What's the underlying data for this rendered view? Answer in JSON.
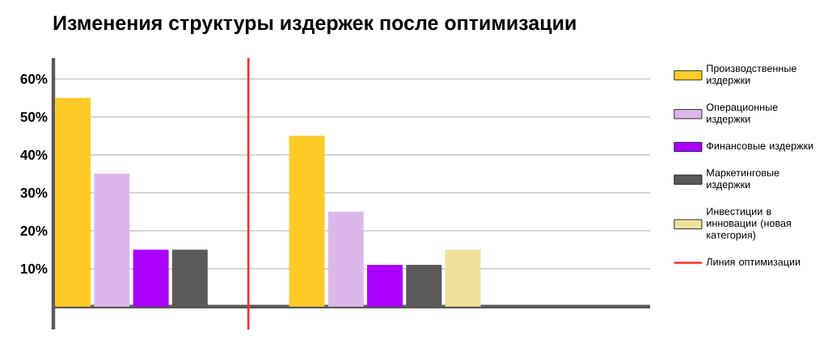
{
  "chart_data": {
    "type": "bar",
    "title": "Изменения структуры издержек после оптимизации",
    "categories": [
      null,
      null,
      null,
      null,
      null,
      null,
      null,
      null,
      null,
      null,
      null,
      null,
      null,
      null,
      null
    ],
    "series": [
      {
        "name": "Производственные издержки",
        "color": "#fecb26",
        "values": [
          55,
          null,
          null,
          null,
          null,
          null,
          45,
          null,
          null,
          null,
          null,
          null,
          null,
          null,
          null
        ]
      },
      {
        "name": "Операционные издержки",
        "color": "#dcb8ea",
        "values": [
          null,
          35,
          null,
          null,
          null,
          null,
          null,
          25,
          null,
          null,
          null,
          null,
          null,
          null,
          null
        ]
      },
      {
        "name": "Финансовые издержки",
        "color": "#aa00ff",
        "values": [
          null,
          null,
          15,
          null,
          null,
          null,
          null,
          null,
          11,
          null,
          null,
          null,
          null,
          null,
          null
        ]
      },
      {
        "name": "Маркетинговые издержки",
        "color": "#5a5a5a",
        "values": [
          null,
          null,
          null,
          15,
          null,
          null,
          null,
          null,
          null,
          11,
          null,
          null,
          null,
          null,
          null
        ]
      },
      {
        "name": "Инвестиции в инновации (новая категория)",
        "color": "#f0e19a",
        "values": [
          null,
          null,
          null,
          null,
          null,
          null,
          null,
          null,
          null,
          null,
          15,
          null,
          null,
          null,
          null
        ]
      }
    ],
    "ylim": [
      -6,
      65.5
    ],
    "yticks": [
      {
        "value": 10,
        "label": "10%"
      },
      {
        "value": 20,
        "label": "20%"
      },
      {
        "value": 30,
        "label": "30%"
      },
      {
        "value": 40,
        "label": "40%"
      },
      {
        "value": 50,
        "label": "50%"
      },
      {
        "value": 60,
        "label": "60%"
      }
    ],
    "ref_lines": [
      {
        "axis": "x",
        "label": "Линия оптимизации",
        "color": "#ff2a2a"
      }
    ],
    "grid": "y",
    "legend": "right",
    "tick_labels": "y"
  }
}
